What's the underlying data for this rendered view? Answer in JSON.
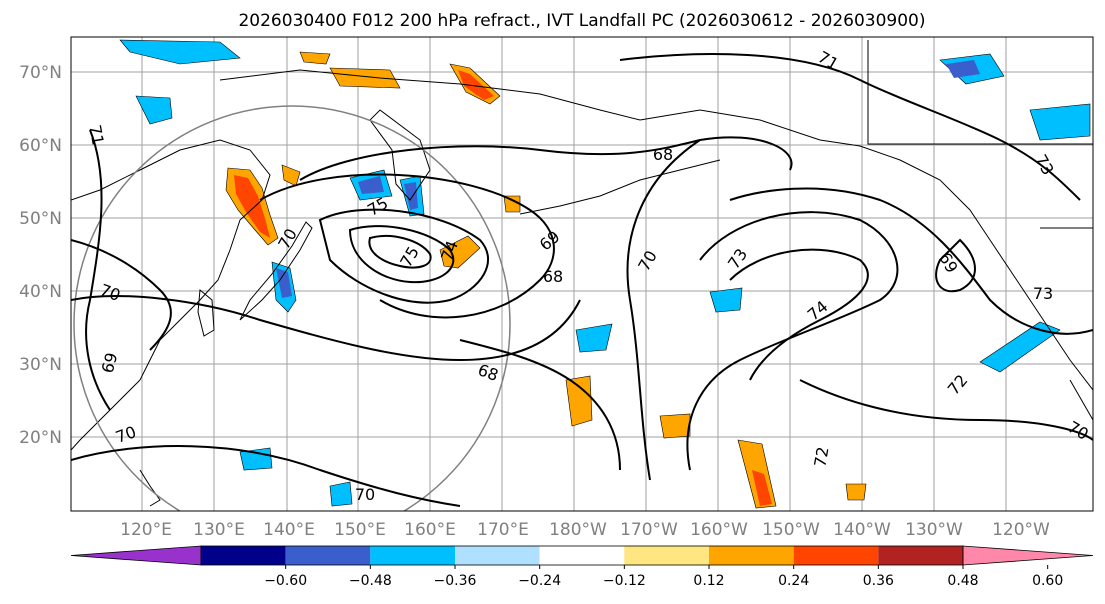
{
  "title": "2026030400 F012 200 hPa refract., IVT Landfall PC (2026030612 - 2026030900)",
  "lat_labels": [
    "70°N",
    "60°N",
    "50°N",
    "40°N",
    "30°N",
    "20°N"
  ],
  "lon_labels": [
    "120°E",
    "130°E",
    "140°E",
    "150°E",
    "160°E",
    "170°E",
    "180°W",
    "170°W",
    "160°W",
    "150°W",
    "140°W",
    "130°W",
    "120°W"
  ],
  "colorbar": {
    "ticks": [
      "−0.60",
      "−0.48",
      "−0.36",
      "−0.24",
      "−0.12",
      "0.12",
      "0.24",
      "0.36",
      "0.48",
      "0.60"
    ],
    "colors": [
      "#9932cc",
      "#00008b",
      "#3a5fcd",
      "#00bfff",
      "#b0e0ff",
      "#ffffff",
      "#ffe680",
      "#ffa500",
      "#ff4500",
      "#b22222",
      "#ff88aa"
    ]
  },
  "contour_labels": [
    {
      "text": "71",
      "key": "c71-a"
    },
    {
      "text": "71",
      "key": "c71-b"
    },
    {
      "text": "68",
      "key": "c68-a"
    },
    {
      "text": "73",
      "key": "c73-a"
    },
    {
      "text": "75",
      "key": "c75-a"
    },
    {
      "text": "69",
      "key": "c69-a"
    },
    {
      "text": "68",
      "key": "c68-b"
    },
    {
      "text": "70",
      "key": "c70-a"
    },
    {
      "text": "73",
      "key": "c73-b"
    },
    {
      "text": "69",
      "key": "c69-b"
    },
    {
      "text": "74",
      "key": "c74-a"
    },
    {
      "text": "73",
      "key": "c73-c"
    },
    {
      "text": "72",
      "key": "c72-a"
    },
    {
      "text": "68",
      "key": "c68-c"
    },
    {
      "text": "72",
      "key": "c72-b"
    },
    {
      "text": "70",
      "key": "c70-b"
    },
    {
      "text": "70",
      "key": "c70-c"
    },
    {
      "text": "69",
      "key": "c69-c"
    },
    {
      "text": "70",
      "key": "c70-d"
    },
    {
      "text": "70",
      "key": "c70-e"
    },
    {
      "text": "70",
      "key": "c70-f"
    },
    {
      "text": "75",
      "key": "c75-b"
    },
    {
      "text": "74",
      "key": "c74-b"
    }
  ]
}
